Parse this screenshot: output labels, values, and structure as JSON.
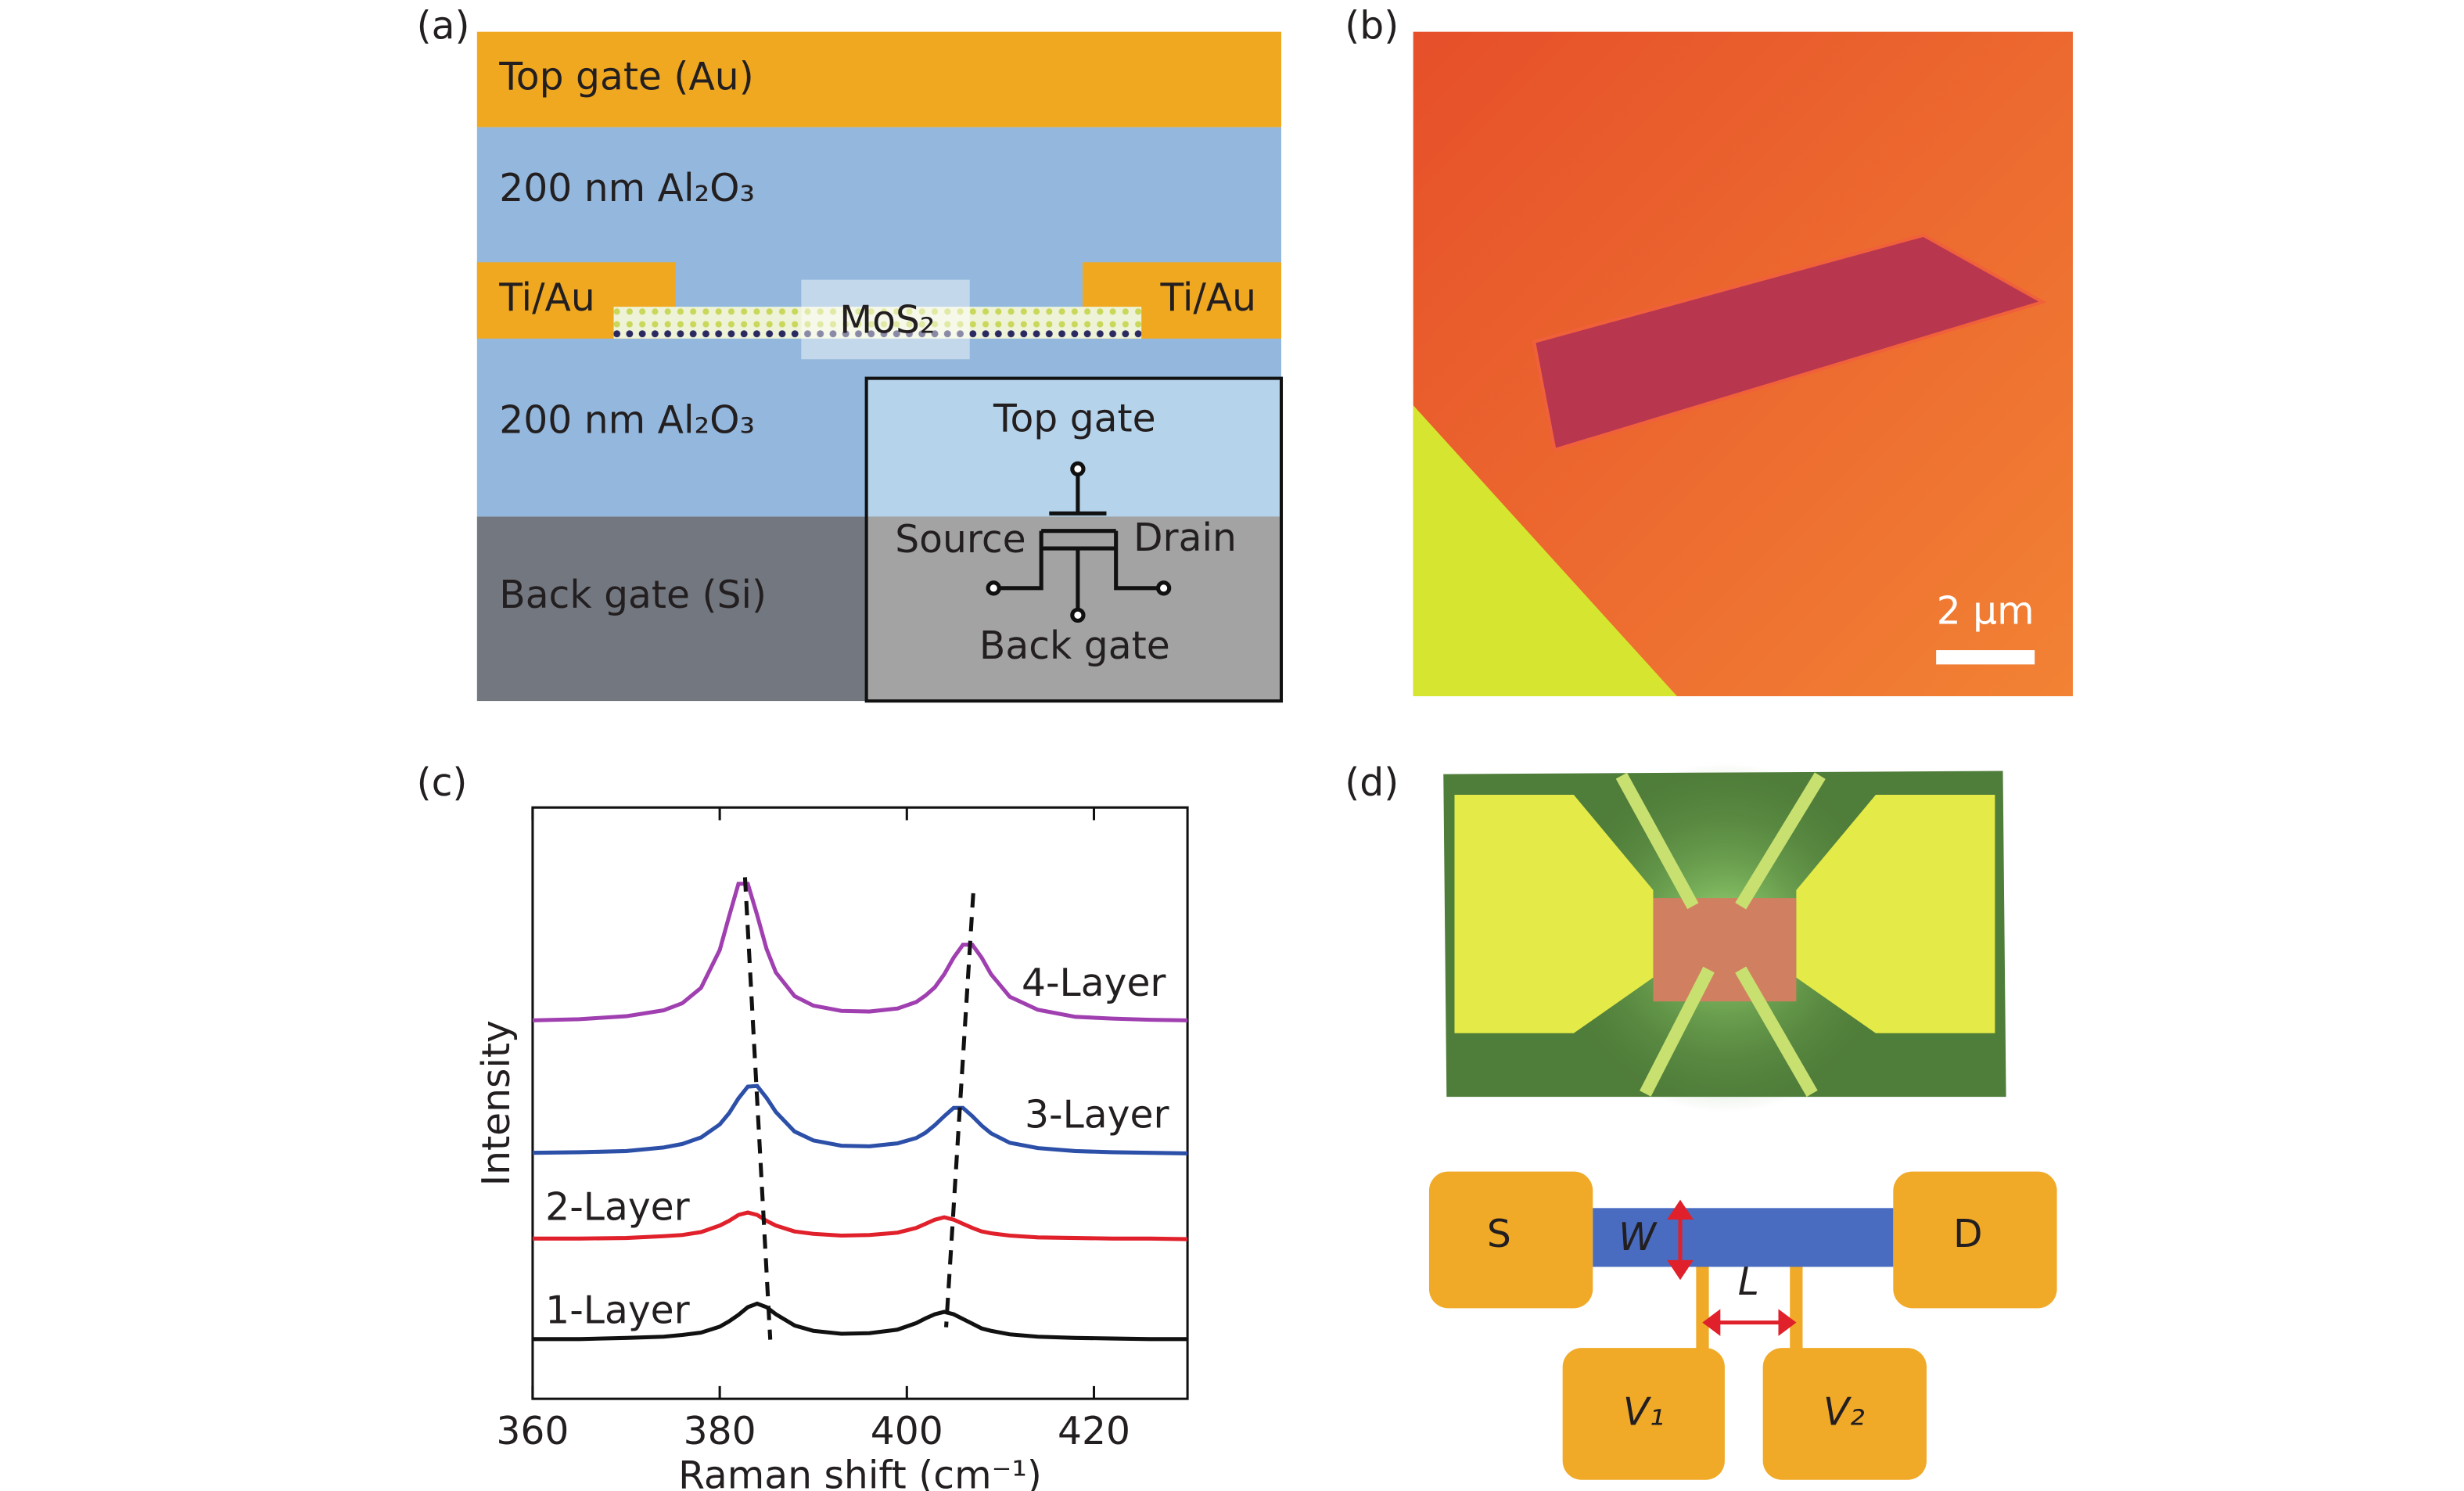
{
  "panel_a": {
    "label": "(a)",
    "top_gate": "Top gate (Au)",
    "oxide_top": "200 nm Al₂O₃",
    "contact_left": "Ti/Au",
    "contact_right": "Ti/Au",
    "channel": "MoS₂",
    "oxide_bottom": "200 nm Al₂O₃",
    "back_gate": "Back gate (Si)",
    "inset": {
      "top_gate": "Top gate",
      "source": "Source",
      "drain": "Drain",
      "back_gate": "Back gate"
    }
  },
  "panel_b": {
    "label": "(b)",
    "scale_bar": "2 µm"
  },
  "chart_data": {
    "type": "line",
    "panel_label": "(c)",
    "xlabel": "Raman shift (cm⁻¹)",
    "ylabel": "Intensity",
    "x": [
      360,
      365,
      370,
      374,
      376,
      378,
      380,
      381,
      382,
      383,
      384,
      385,
      386,
      388,
      390,
      393,
      396,
      399,
      401,
      402,
      403,
      404,
      405,
      406,
      407,
      408,
      409,
      411,
      414,
      418,
      422,
      426,
      430
    ],
    "xlim": [
      360,
      430
    ],
    "xticks": [
      360,
      380,
      400,
      420
    ],
    "ylim": [
      0,
      100
    ],
    "series": [
      {
        "name": "1-Layer",
        "color": "#111111",
        "values": [
          10.1,
          10.1,
          10.3,
          10.5,
          10.8,
          11.2,
          12.2,
          13.1,
          14.2,
          15.5,
          16.1,
          15.5,
          14.3,
          12.4,
          11.5,
          11.0,
          11.1,
          11.7,
          12.8,
          13.6,
          14.3,
          14.7,
          14.3,
          13.5,
          12.7,
          11.9,
          11.5,
          10.9,
          10.5,
          10.3,
          10.2,
          10.1,
          10.1
        ]
      },
      {
        "name": "2-Layer",
        "color": "#e0202a",
        "values": [
          27.1,
          27.1,
          27.2,
          27.5,
          27.7,
          28.2,
          29.3,
          30.1,
          31.1,
          31.5,
          31.1,
          30.1,
          29.3,
          28.3,
          27.9,
          27.6,
          27.7,
          28.1,
          28.9,
          29.6,
          30.3,
          30.7,
          30.3,
          29.6,
          28.9,
          28.3,
          28.0,
          27.6,
          27.3,
          27.2,
          27.1,
          27.1,
          27.0
        ]
      },
      {
        "name": "3-Layer",
        "color": "#2c4fa8",
        "values": [
          41.6,
          41.7,
          41.9,
          42.5,
          43.1,
          44.2,
          46.4,
          48.3,
          50.8,
          52.8,
          52.9,
          50.9,
          48.5,
          45.2,
          43.7,
          42.8,
          42.7,
          43.2,
          44.1,
          45.0,
          46.3,
          47.8,
          49.2,
          49.2,
          47.8,
          46.2,
          44.9,
          43.3,
          42.4,
          41.9,
          41.7,
          41.6,
          41.5
        ]
      },
      {
        "name": "4-Layer",
        "color": "#a040b0",
        "values": [
          64.0,
          64.2,
          64.7,
          65.7,
          66.9,
          69.5,
          75.9,
          81.6,
          87.1,
          87.1,
          81.8,
          76.1,
          72.1,
          68.1,
          66.5,
          65.6,
          65.5,
          66.0,
          67.1,
          68.2,
          69.6,
          71.8,
          74.6,
          76.8,
          76.8,
          74.6,
          71.8,
          68.0,
          65.8,
          64.6,
          64.3,
          64.1,
          64.0
        ]
      }
    ],
    "guides": [
      {
        "x": [
          382.7,
          385.4
        ],
        "y": [
          88.2,
          10
        ]
      },
      {
        "x": [
          407.1,
          404.2
        ],
        "y": [
          85.5,
          12.1
        ]
      }
    ]
  },
  "panel_d": {
    "label": "(d)",
    "source": "S",
    "drain": "D",
    "width": "W",
    "length": "L",
    "probe_1": "V₁",
    "probe_2": "V₂"
  }
}
